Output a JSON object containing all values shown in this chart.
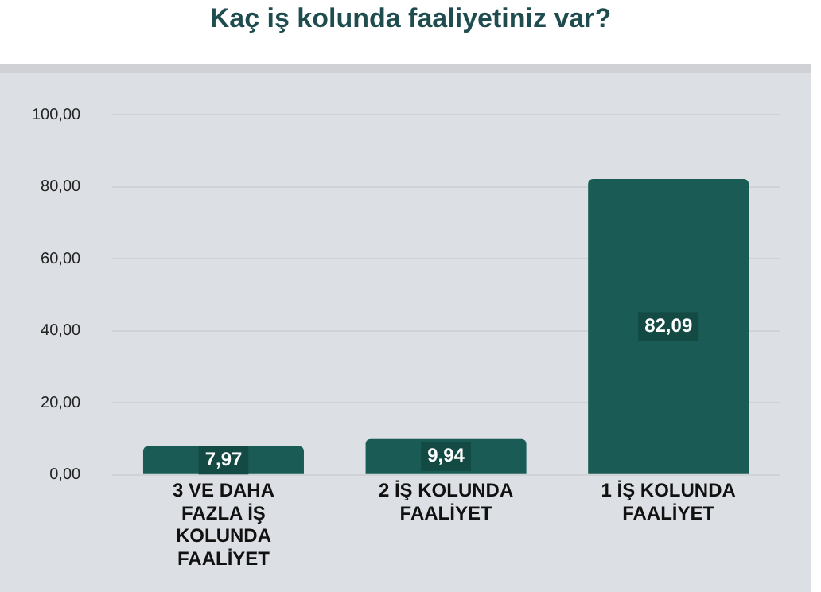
{
  "chart_data": {
    "type": "bar",
    "title": "Kaç iş kolunda faaliyetiniz var?",
    "categories": [
      "3 VE DAHA FAZLA İŞ KOLUNDA FAALİYET",
      "2 İŞ KOLUNDA FAALİYET",
      "1 İŞ KOLUNDA FAALİYET"
    ],
    "values": [
      7.97,
      9.94,
      82.09
    ],
    "value_labels": [
      "7,97",
      "9,94",
      "82,09"
    ],
    "color": "#1a5b55",
    "ylim": [
      0,
      100
    ],
    "yticks": [
      {
        "value": 0,
        "label": "0,00"
      },
      {
        "value": 20,
        "label": "20,00"
      },
      {
        "value": 40,
        "label": "40,00"
      },
      {
        "value": 60,
        "label": "60,00"
      },
      {
        "value": 80,
        "label": "80,00"
      },
      {
        "value": 100,
        "label": "100,00"
      }
    ],
    "grid": "y"
  }
}
